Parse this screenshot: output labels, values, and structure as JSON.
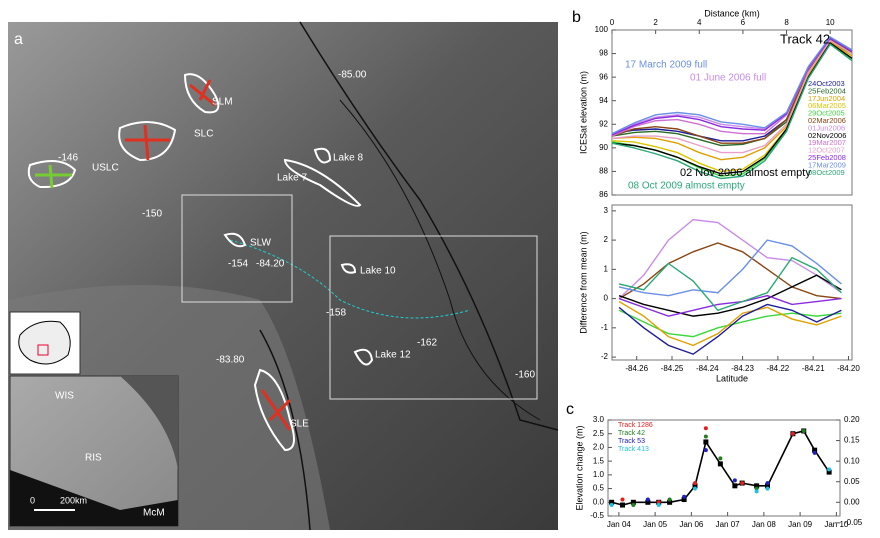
{
  "map": {
    "panel_label": "a",
    "labels": [
      "-85.00",
      "SLM",
      "SLC",
      "USLC",
      "-146",
      "Lake 8",
      "Lake 7",
      "-150",
      "SLW",
      "-154",
      "-84.20",
      "Lake 10",
      "-158",
      "-162",
      "Lake 12",
      "-160",
      "-83.80",
      "SLE",
      "WIS",
      "RIS",
      "McM",
      "0",
      "200km"
    ]
  },
  "chart_data": [
    {
      "type": "line",
      "panel_label": "b",
      "xlabel": "Distance (km)",
      "ylabel": "ICESat elevation (m)",
      "x": [
        0,
        1,
        2,
        3,
        4,
        5,
        6,
        7,
        8,
        9,
        10,
        11
      ],
      "xlim": [
        0,
        11
      ],
      "xticks": [
        0,
        2,
        4,
        6,
        8,
        10
      ],
      "ylim": [
        86,
        100
      ],
      "yticks": [
        86,
        88,
        90,
        92,
        94,
        96,
        98,
        100
      ],
      "annotations": [
        "Track 42",
        "17 March 2009 full",
        "01 June 2006 full",
        "02 Nov 2006 almost empty",
        "08 Oct 2009 almost empty"
      ],
      "series": [
        {
          "name": "24Oct2003",
          "color": "#1c1c9c",
          "values": [
            91.2,
            91.5,
            91.6,
            91.4,
            91,
            90.6,
            90.6,
            91,
            92.4,
            96.6,
            99.2,
            98.2
          ]
        },
        {
          "name": "25Feb2004",
          "color": "#2a6b2a",
          "values": [
            91,
            91.3,
            91.4,
            91.2,
            90.7,
            90.2,
            90.3,
            90.8,
            92.2,
            96.4,
            99,
            98
          ]
        },
        {
          "name": "17Jun2004",
          "color": "#e0a000",
          "values": [
            90.8,
            90.9,
            90.8,
            90.4,
            89.6,
            89,
            89.2,
            90,
            91.8,
            96.2,
            99,
            97.8
          ]
        },
        {
          "name": "06Mar2005",
          "color": "#d9c600",
          "values": [
            90.6,
            90.5,
            90.1,
            89.6,
            88.7,
            88,
            88.2,
            89.4,
            91.6,
            96,
            98.9,
            97.6
          ]
        },
        {
          "name": "29Oct2005",
          "color": "#3cd83c",
          "values": [
            90.5,
            90.2,
            89.8,
            89.2,
            88.3,
            87.6,
            87.8,
            89.1,
            91.5,
            96,
            98.8,
            97.5
          ]
        },
        {
          "name": "02Mar2006",
          "color": "#8b4513",
          "values": [
            91,
            91.6,
            91.8,
            91.6,
            91,
            90.4,
            90.4,
            90.8,
            92.4,
            96.6,
            99.2,
            98.1
          ]
        },
        {
          "name": "01Jun2006",
          "color": "#c88ce8",
          "values": [
            91.2,
            92,
            92.6,
            92.8,
            92.6,
            92,
            91.8,
            91.6,
            93,
            96.8,
            99.4,
            98.3
          ]
        },
        {
          "name": "02Nov2006",
          "color": "#000000",
          "values": [
            90.4,
            90.2,
            89.8,
            89.2,
            88.4,
            87.8,
            88,
            89.2,
            91.6,
            96,
            98.9,
            97.6
          ]
        },
        {
          "name": "19Mar2007",
          "color": "#d070d0",
          "values": [
            91,
            91.8,
            92.3,
            92.4,
            92,
            91.4,
            91.2,
            91.2,
            92.8,
            96.7,
            99.3,
            98.2
          ]
        },
        {
          "name": "12Oct2007",
          "color": "#e8a0c8",
          "values": [
            90.8,
            91,
            91,
            90.8,
            90.2,
            89.6,
            89.6,
            90.2,
            92,
            96.4,
            99.1,
            98
          ]
        },
        {
          "name": "25Feb2008",
          "color": "#8a2be2",
          "values": [
            91.1,
            91.9,
            92.5,
            92.7,
            92.4,
            91.8,
            91.6,
            91.5,
            92.9,
            96.8,
            99.3,
            98.2
          ]
        },
        {
          "name": "17Mar2009",
          "color": "#6a8fe8",
          "values": [
            91.2,
            92.1,
            92.8,
            93,
            92.8,
            92.2,
            92,
            91.7,
            93,
            96.9,
            99.4,
            98.3
          ]
        },
        {
          "name": "08Oct2009",
          "color": "#2aa876",
          "values": [
            90.4,
            90,
            89.5,
            88.9,
            88,
            87.4,
            87.6,
            88.9,
            91.4,
            95.9,
            98.8,
            97.4
          ]
        }
      ]
    },
    {
      "type": "line",
      "xlabel": "Latitude",
      "ylabel": "Difference from mean (m)",
      "x": [
        -84.265,
        -84.258,
        -84.251,
        -84.244,
        -84.237,
        -84.23,
        -84.223,
        -84.216,
        -84.209,
        -84.202
      ],
      "xlim": [
        -84.267,
        -84.199
      ],
      "xticks": [
        -84.26,
        -84.25,
        -84.24,
        -84.23,
        -84.22,
        -84.21,
        {
          "value": -84.2,
          "label": "-84.20"
        }
      ],
      "ylim": [
        -2.1,
        3.2
      ],
      "yticks": [
        -2,
        -1,
        0,
        1,
        2,
        3
      ],
      "series": [
        {
          "color": "#8b4513",
          "values": [
            0,
            0.5,
            1.2,
            1.6,
            1.9,
            1.6,
            1,
            0.4,
            0.1,
            0
          ]
        },
        {
          "color": "#c88ce8",
          "values": [
            0,
            0.8,
            2,
            2.7,
            2.6,
            2,
            1.4,
            1.3,
            0.8,
            0.2
          ]
        },
        {
          "color": "#6a8fe8",
          "values": [
            0.4,
            0.2,
            0.1,
            0.3,
            0.2,
            1,
            2,
            1.8,
            1.2,
            0.5
          ]
        },
        {
          "color": "#000000",
          "values": [
            0.1,
            -0.2,
            -0.4,
            -0.6,
            -0.5,
            -0.3,
            0,
            0.4,
            0.8,
            0.3
          ]
        },
        {
          "color": "#3cd83c",
          "values": [
            -0.4,
            -0.8,
            -1.2,
            -1.3,
            -1,
            -0.8,
            -0.6,
            -0.5,
            -0.6,
            -0.5
          ]
        },
        {
          "color": "#e0a000",
          "values": [
            -0.1,
            -0.6,
            -1.3,
            -1.6,
            -1.2,
            -0.5,
            -0.3,
            -0.7,
            -0.9,
            -0.6
          ]
        },
        {
          "color": "#8a2be2",
          "values": [
            0,
            -0.3,
            -0.6,
            -0.4,
            -0.2,
            -0.1,
            0.1,
            -0.2,
            -0.1,
            0
          ]
        },
        {
          "color": "#1c1c9c",
          "values": [
            -0.3,
            -1,
            -1.6,
            -1.9,
            -1.3,
            -0.6,
            -0.2,
            -0.4,
            -0.8,
            -0.4
          ]
        },
        {
          "color": "#2aa876",
          "values": [
            0.5,
            0.3,
            1.2,
            0.6,
            -0.4,
            -0.1,
            0.2,
            1.4,
            1,
            0.2
          ]
        }
      ]
    },
    {
      "type": "line",
      "panel_label": "c",
      "ylabel": "Elevation change (m)",
      "xlim": [
        2003.7,
        2010.1
      ],
      "xticks": [
        {
          "value": 2004,
          "label": "Jan 04"
        },
        {
          "value": 2005,
          "label": "Jan 05"
        },
        {
          "value": 2006,
          "label": "Jan 06"
        },
        {
          "value": 2007,
          "label": "Jan 07"
        },
        {
          "value": 2008,
          "label": "Jan 08"
        },
        {
          "value": 2009,
          "label": "Jan 09"
        },
        {
          "value": 2010,
          "label": "Jan 10"
        }
      ],
      "ylim": [
        -0.5,
        3.0
      ],
      "yticks": [
        {
          "value": -0.5,
          "label": "-0.5"
        },
        {
          "value": 0,
          "label": "0.0"
        },
        {
          "value": 0.5,
          "label": "0.5"
        },
        {
          "value": 1,
          "label": "1.0"
        },
        {
          "value": 1.5,
          "label": "1.5"
        },
        {
          "value": 2,
          "label": "2.0"
        },
        {
          "value": 2.5,
          "label": "2.5"
        },
        {
          "value": 3,
          "label": "3.0"
        }
      ],
      "y2lim": [
        -0.0333,
        0.2
      ],
      "y2ticks": [
        {
          "value": -0.05,
          "label": "-0.05"
        },
        {
          "value": 0,
          "label": "0.00"
        },
        {
          "value": 0.05,
          "label": "0.05"
        },
        {
          "value": 0.1,
          "label": "0.10"
        },
        {
          "value": 0.15,
          "label": "0.15"
        },
        {
          "value": 0.2,
          "label": "0.20"
        }
      ],
      "x": [
        2003.8,
        2004.1,
        2004.4,
        2004.8,
        2005.1,
        2005.4,
        2005.8,
        2006.1,
        2006.4,
        2006.8,
        2007.2,
        2007.4,
        2007.8,
        2008.1,
        2008.8,
        2009.1,
        2009.4,
        2009.8
      ],
      "line": {
        "color": "#000000",
        "values": [
          0,
          -0.1,
          0,
          0,
          0,
          0,
          0.1,
          0.6,
          2.2,
          1.4,
          0.6,
          0.7,
          0.6,
          0.6,
          2.5,
          2.6,
          1.9,
          1.1
        ]
      },
      "series": [
        {
          "name": "Track 1286",
          "color": "#e02020",
          "x": [
            2004.1,
            2005.1,
            2006.1,
            2006.4,
            2007.4,
            2008.8
          ],
          "values": [
            0.1,
            0,
            0.7,
            2.7,
            0.7,
            2.5
          ]
        },
        {
          "name": "Track 42",
          "color": "#208020",
          "x": [
            2004.4,
            2005.4,
            2006.4,
            2006.8,
            2007.8,
            2009.1
          ],
          "values": [
            -0.1,
            0.1,
            2.4,
            1.6,
            0.5,
            2.6
          ]
        },
        {
          "name": "Track 53",
          "color": "#2020c0",
          "x": [
            2004.8,
            2005.8,
            2006.4,
            2007.2,
            2008.1,
            2009.4
          ],
          "values": [
            0.1,
            0.2,
            1.9,
            0.8,
            0.7,
            1.8
          ]
        },
        {
          "name": "Track 413",
          "color": "#20c0e0",
          "x": [
            2003.8,
            2005.1,
            2006.1,
            2007.8,
            2008.1,
            2009.8
          ],
          "values": [
            -0.1,
            -0.1,
            0.5,
            0.4,
            0.5,
            1.2
          ]
        }
      ]
    }
  ]
}
